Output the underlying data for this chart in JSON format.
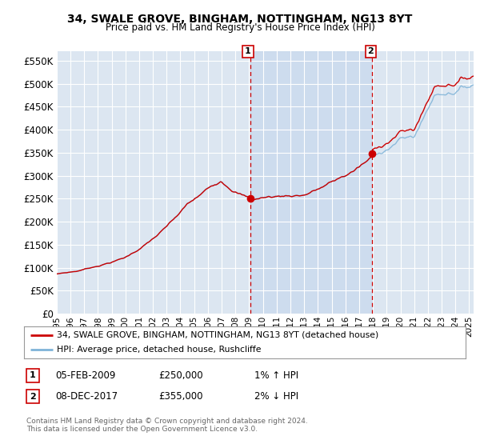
{
  "title": "34, SWALE GROVE, BINGHAM, NOTTINGHAM, NG13 8YT",
  "subtitle": "Price paid vs. HM Land Registry's House Price Index (HPI)",
  "ylim": [
    0,
    570000
  ],
  "yticks": [
    0,
    50000,
    100000,
    150000,
    200000,
    250000,
    300000,
    350000,
    400000,
    450000,
    500000,
    550000
  ],
  "xlim_start": 1995.5,
  "xlim_end": 2025.3,
  "background_color": "#ffffff",
  "plot_bg_color": "#dce6f1",
  "plot_bg_highlight": "#c8d9ed",
  "grid_color": "#ffffff",
  "red_line_color": "#cc0000",
  "blue_line_color": "#7eb3d8",
  "sale1_date": "05-FEB-2009",
  "sale1_price": 250000,
  "sale1_x": 2009.08,
  "sale2_date": "08-DEC-2017",
  "sale2_price": 355000,
  "sale2_x": 2017.92,
  "legend_line1": "34, SWALE GROVE, BINGHAM, NOTTINGHAM, NG13 8YT (detached house)",
  "legend_line2": "HPI: Average price, detached house, Rushcliffe",
  "footnote": "Contains HM Land Registry data © Crown copyright and database right 2024.\nThis data is licensed under the Open Government Licence v3.0.",
  "table_row1": [
    "1",
    "05-FEB-2009",
    "£250,000",
    "1% ↑ HPI"
  ],
  "table_row2": [
    "2",
    "08-DEC-2017",
    "£355,000",
    "2% ↓ HPI"
  ]
}
